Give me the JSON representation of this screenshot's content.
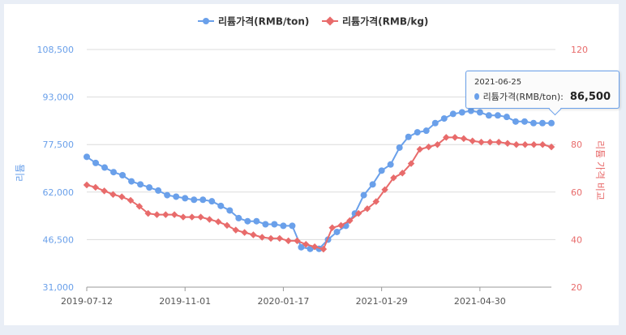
{
  "chart_data": {
    "type": "line",
    "xlabel": "",
    "y_left_label": "리튬",
    "y_right_label": "리튬 가격 비교",
    "y_left_ticks": [
      "31,000",
      "46,500",
      "62,000",
      "77,500",
      "93,000",
      "108,500"
    ],
    "y_right_ticks": [
      "20",
      "40",
      "60",
      "80",
      "100",
      "120"
    ],
    "ylim_left": [
      31000,
      108500
    ],
    "ylim_right": [
      20,
      120
    ],
    "x_tick_labels": [
      "2019-07-12",
      "2019-11-01",
      "2020-01-17",
      "2021-01-29",
      "2021-04-30"
    ],
    "legend_position": "top-center",
    "grid": true,
    "series": [
      {
        "name": "리튬가격(RMB/ton)",
        "axis": "left",
        "color": "#6aa0ea",
        "values": [
          73500,
          71500,
          70000,
          68500,
          67500,
          65500,
          64500,
          63500,
          62500,
          61000,
          60500,
          60000,
          59500,
          59500,
          59000,
          57500,
          56000,
          53500,
          52500,
          52500,
          51500,
          51500,
          51000,
          51000,
          44000,
          43500,
          43500,
          46500,
          49000,
          51000,
          55000,
          61000,
          64500,
          69000,
          71000,
          76500,
          80000,
          81500,
          82000,
          84500,
          86000,
          87500,
          88000,
          88500,
          88000,
          87000,
          87000,
          86500,
          85000,
          85000,
          84500,
          84500,
          84500
        ]
      },
      {
        "name": "리튬가격(RMB/kg)",
        "axis": "right",
        "color": "#e86b6b",
        "values": [
          63,
          62,
          60.5,
          59,
          58,
          56.5,
          54,
          51,
          50.5,
          50.5,
          50.5,
          49.5,
          49.5,
          49.5,
          48.5,
          47.5,
          46,
          44,
          43,
          42,
          41,
          40.5,
          40.5,
          39.5,
          39.5,
          38,
          37,
          36,
          45,
          46,
          48,
          51,
          53,
          56,
          61,
          66,
          68,
          72,
          78,
          79,
          80,
          83,
          83,
          82.5,
          81.5,
          81,
          81,
          81,
          80.5,
          80,
          80,
          80,
          80,
          79
        ]
      }
    ],
    "tooltip": {
      "date": "2021-06-25",
      "series": "리튬가격(RMB/ton)",
      "value": "86,500"
    }
  }
}
